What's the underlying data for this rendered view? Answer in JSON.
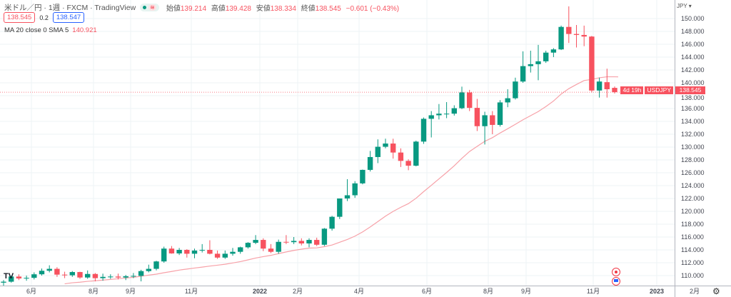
{
  "header": {
    "title": "米ドル／円 · 1週 · FXCM · TradingView",
    "ohlc": [
      {
        "label": "始値",
        "value": "139.214"
      },
      {
        "label": "高値",
        "value": "139.428"
      },
      {
        "label": "安値",
        "value": "138.334"
      },
      {
        "label": "終値",
        "value": "138.545"
      }
    ],
    "change": "−0.601 (−0.43%)",
    "sell_price": "138.545",
    "spread": "0.2",
    "buy_price": "138.547",
    "indicator_label": "MA 20 close 0 SMA 5",
    "indicator_value": "140.921"
  },
  "axis": {
    "currency": "JPY ▾",
    "price_ticks": [
      "150.000",
      "148.000",
      "146.000",
      "144.000",
      "142.000",
      "140.000",
      "138.000",
      "136.000",
      "134.000",
      "132.000",
      "130.000",
      "128.000",
      "126.000",
      "124.000",
      "122.000",
      "120.000",
      "118.000",
      "116.000",
      "114.000",
      "112.000",
      "110.000"
    ],
    "time_ticks": [
      "6月",
      "8月",
      "9月",
      "11月",
      "2022",
      "2月",
      "4月",
      "6月",
      "8月",
      "9月",
      "11月",
      "2023",
      "2月"
    ]
  },
  "price_tag": {
    "symbol": "USDJPY",
    "price": "138.545",
    "countdown": "4d 19h"
  },
  "logo": "TV",
  "colors": {
    "up": "#089981",
    "down": "#f7525f",
    "ma": "#f7a1a8",
    "grid": "#eef3f6"
  },
  "chart_data": {
    "type": "candlestick",
    "title": "USDJPY weekly",
    "ylim": [
      108.0,
      152.0
    ],
    "ma_period": 20,
    "ohlc": [
      [
        108.9,
        109.3,
        108.4,
        109.05
      ],
      [
        109.05,
        110.0,
        108.9,
        109.85
      ],
      [
        109.85,
        110.2,
        109.3,
        109.55
      ],
      [
        109.55,
        110.0,
        109.2,
        109.65
      ],
      [
        109.65,
        110.5,
        109.4,
        110.2
      ],
      [
        110.2,
        111.1,
        110.0,
        110.75
      ],
      [
        110.75,
        111.6,
        110.5,
        111.05
      ],
      [
        111.05,
        111.3,
        109.8,
        110.15
      ],
      [
        110.15,
        110.6,
        109.6,
        110.05
      ],
      [
        110.05,
        110.7,
        109.8,
        110.55
      ],
      [
        110.55,
        110.6,
        109.5,
        109.7
      ],
      [
        109.7,
        110.8,
        109.5,
        110.25
      ],
      [
        110.25,
        110.4,
        109.1,
        109.6
      ],
      [
        109.6,
        110.3,
        109.2,
        109.8
      ],
      [
        109.8,
        110.2,
        109.5,
        109.85
      ],
      [
        109.85,
        110.3,
        109.4,
        109.7
      ],
      [
        109.7,
        110.1,
        109.3,
        109.9
      ],
      [
        109.9,
        110.4,
        109.6,
        109.95
      ],
      [
        109.95,
        110.9,
        109.1,
        110.7
      ],
      [
        110.7,
        111.7,
        110.5,
        111.05
      ],
      [
        111.05,
        112.3,
        110.8,
        112.2
      ],
      [
        112.2,
        114.5,
        112.0,
        114.2
      ],
      [
        114.2,
        114.6,
        113.4,
        113.45
      ],
      [
        113.45,
        114.3,
        113.2,
        114.0
      ],
      [
        114.0,
        114.1,
        112.8,
        113.4
      ],
      [
        113.4,
        114.2,
        112.7,
        113.9
      ],
      [
        113.9,
        114.9,
        113.6,
        114.0
      ],
      [
        114.0,
        115.5,
        113.3,
        113.4
      ],
      [
        113.4,
        113.9,
        112.6,
        112.8
      ],
      [
        112.8,
        113.9,
        112.6,
        113.4
      ],
      [
        113.4,
        114.3,
        113.1,
        113.7
      ],
      [
        113.7,
        114.5,
        113.4,
        114.4
      ],
      [
        114.4,
        115.2,
        114.2,
        115.1
      ],
      [
        115.1,
        116.3,
        114.9,
        115.55
      ],
      [
        115.55,
        115.8,
        113.8,
        114.2
      ],
      [
        114.2,
        114.9,
        113.5,
        113.7
      ],
      [
        113.7,
        115.6,
        113.4,
        115.25
      ],
      [
        115.25,
        116.3,
        114.9,
        115.2
      ],
      [
        115.2,
        116.0,
        114.9,
        115.4
      ],
      [
        115.4,
        115.8,
        114.7,
        115.0
      ],
      [
        115.0,
        115.8,
        114.4,
        115.55
      ],
      [
        115.55,
        115.9,
        114.6,
        114.8
      ],
      [
        114.8,
        117.4,
        114.6,
        117.3
      ],
      [
        117.3,
        119.3,
        117.0,
        119.15
      ],
      [
        119.15,
        122.0,
        118.8,
        122.0
      ],
      [
        122.0,
        125.0,
        121.6,
        122.5
      ],
      [
        122.5,
        124.7,
        122.1,
        124.35
      ],
      [
        124.35,
        126.5,
        124.2,
        126.45
      ],
      [
        126.45,
        129.4,
        126.2,
        128.45
      ],
      [
        128.45,
        131.2,
        127.5,
        130.05
      ],
      [
        130.05,
        131.3,
        129.8,
        130.55
      ],
      [
        130.55,
        131.3,
        128.2,
        129.15
      ],
      [
        129.15,
        129.8,
        126.9,
        127.85
      ],
      [
        127.85,
        128.1,
        126.4,
        127.1
      ],
      [
        127.1,
        131.0,
        127.0,
        130.85
      ],
      [
        130.85,
        134.6,
        130.5,
        134.4
      ],
      [
        134.4,
        135.6,
        131.5,
        134.95
      ],
      [
        134.95,
        136.7,
        134.3,
        135.2
      ],
      [
        135.2,
        137.0,
        134.5,
        135.2
      ],
      [
        135.2,
        136.5,
        134.9,
        136.05
      ],
      [
        136.05,
        139.4,
        135.9,
        138.5
      ],
      [
        138.5,
        138.9,
        135.6,
        136.1
      ],
      [
        136.1,
        137.5,
        132.5,
        133.25
      ],
      [
        133.25,
        135.5,
        130.4,
        134.95
      ],
      [
        134.95,
        135.6,
        132.0,
        133.45
      ],
      [
        133.45,
        137.3,
        133.2,
        136.95
      ],
      [
        136.95,
        139.0,
        136.2,
        137.6
      ],
      [
        137.6,
        140.8,
        137.4,
        140.2
      ],
      [
        140.2,
        144.9,
        140.0,
        142.6
      ],
      [
        142.6,
        145.0,
        141.6,
        142.9
      ],
      [
        142.9,
        145.9,
        140.4,
        143.35
      ],
      [
        143.35,
        145.0,
        143.1,
        144.7
      ],
      [
        144.7,
        145.4,
        144.0,
        145.2
      ],
      [
        145.2,
        148.9,
        145.1,
        148.7
      ],
      [
        148.7,
        151.9,
        146.2,
        147.6
      ],
      [
        147.6,
        149.0,
        145.5,
        147.45
      ],
      [
        147.45,
        148.9,
        145.7,
        147.2
      ],
      [
        147.2,
        147.3,
        138.5,
        138.8
      ],
      [
        138.8,
        140.8,
        137.7,
        140.2
      ],
      [
        140.1,
        142.2,
        137.7,
        139.0
      ],
      [
        139.214,
        139.428,
        138.334,
        138.545
      ]
    ]
  }
}
